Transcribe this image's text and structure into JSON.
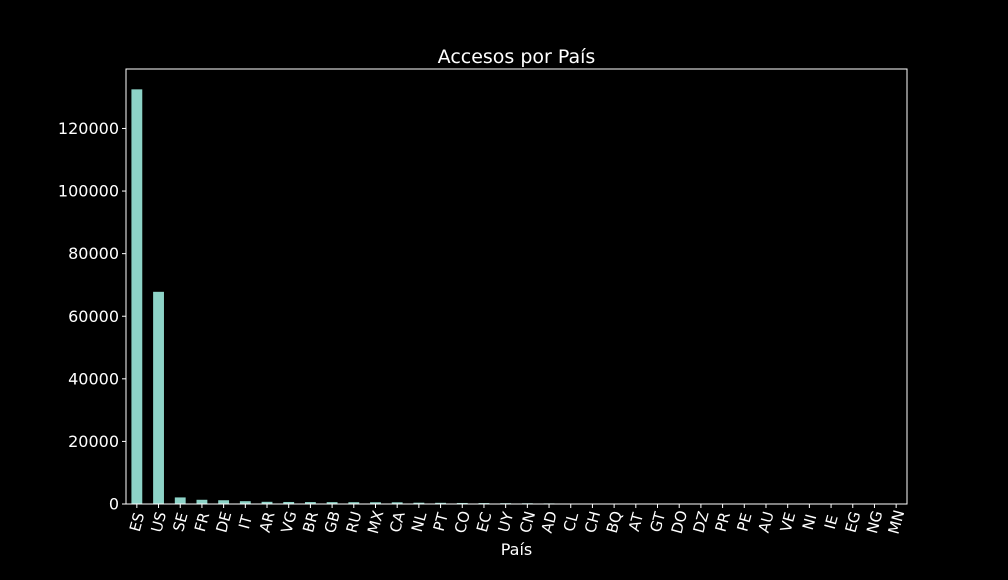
{
  "chart_data": {
    "type": "bar",
    "title": "Accesos por País",
    "xlabel": "País",
    "ylabel": "",
    "ylim": [
      0,
      139000
    ],
    "yticks": [
      0,
      20000,
      40000,
      60000,
      80000,
      100000,
      120000
    ],
    "grid": false,
    "legend": "none",
    "categories": [
      "ES",
      "US",
      "SE",
      "FR",
      "DE",
      "IT",
      "AR",
      "VG",
      "BR",
      "GB",
      "RU",
      "MX",
      "CA",
      "NL",
      "PT",
      "CO",
      "EC",
      "UY",
      "CN",
      "AD",
      "CL",
      "CH",
      "BQ",
      "AT",
      "GT",
      "DO",
      "DZ",
      "PR",
      "PE",
      "AU",
      "VE",
      "NI",
      "IE",
      "EG",
      "NG",
      "MN"
    ],
    "values": [
      132500,
      67800,
      2100,
      1350,
      1200,
      900,
      700,
      650,
      620,
      600,
      580,
      560,
      540,
      420,
      380,
      330,
      300,
      260,
      240,
      200,
      60,
      50,
      45,
      40,
      35,
      30,
      28,
      25,
      22,
      20,
      18,
      15,
      12,
      10,
      8,
      6
    ],
    "bar_color": "#8dd3c7",
    "background": "#000000",
    "axes_color": "#ffffff"
  }
}
